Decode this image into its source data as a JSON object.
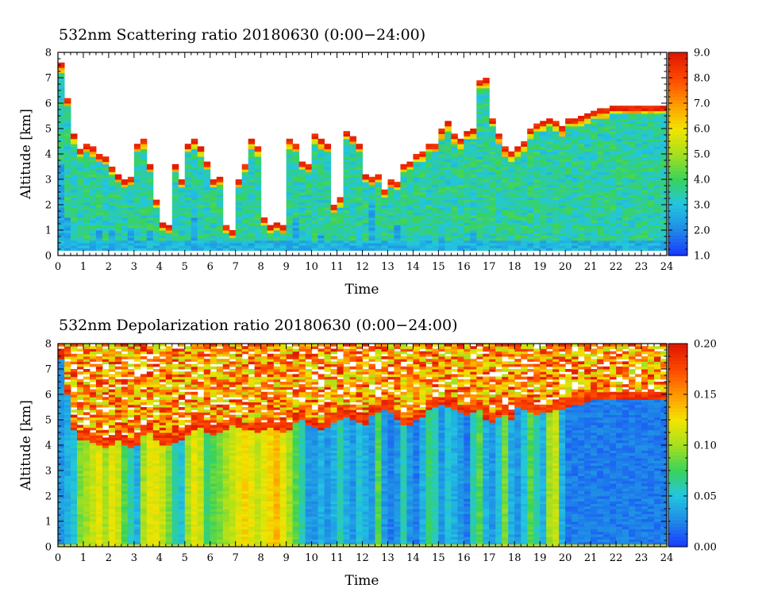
{
  "colors": {
    "colormap": [
      "#1a3cff",
      "#1f8ce6",
      "#22c6e0",
      "#3ad35a",
      "#a6e01e",
      "#f2e400",
      "#ff9a00",
      "#ff4a00",
      "#e01800"
    ],
    "cloud_edge": "#ff3a00",
    "clear_sky": "#ffffff"
  },
  "chart_data": [
    {
      "type": "heatmap",
      "title": "532nm Scattering ratio   20180630 (0:00−24:00)",
      "xlabel": "Time",
      "ylabel": "Altitude [km]",
      "xlim": [
        0,
        24
      ],
      "ylim": [
        0,
        8
      ],
      "x_ticks": [
        "0",
        "1",
        "2",
        "3",
        "4",
        "5",
        "6",
        "7",
        "8",
        "9",
        "10",
        "11",
        "12",
        "13",
        "14",
        "15",
        "16",
        "17",
        "18",
        "19",
        "20",
        "21",
        "22",
        "23",
        "24"
      ],
      "y_ticks": [
        "0",
        "1",
        "2",
        "3",
        "4",
        "5",
        "6",
        "7",
        "8"
      ],
      "colorbar": {
        "min": 1.0,
        "max": 9.0,
        "ticks": [
          "1.0",
          "2.0",
          "3.0",
          "4.0",
          "5.0",
          "6.0",
          "7.0",
          "8.0",
          "9.0"
        ]
      },
      "cloud_top_km": [
        7.6,
        6.2,
        4.8,
        4.2,
        4.4,
        4.3,
        4.0,
        3.9,
        3.5,
        3.2,
        3.0,
        3.1,
        4.4,
        4.6,
        3.6,
        2.2,
        1.3,
        1.2,
        3.6,
        3.0,
        4.4,
        4.6,
        4.3,
        3.7,
        3.0,
        3.1,
        1.2,
        1.0,
        3.0,
        3.6,
        4.6,
        4.3,
        1.5,
        1.2,
        1.3,
        1.2,
        4.6,
        4.4,
        3.7,
        3.6,
        4.8,
        4.6,
        4.4,
        2.0,
        2.3,
        4.9,
        4.7,
        4.4,
        3.2,
        3.1,
        3.2,
        2.6,
        3.0,
        2.9,
        3.6,
        3.7,
        4.0,
        4.1,
        4.4,
        4.4,
        5.0,
        5.3,
        4.8,
        4.6,
        4.9,
        5.0,
        6.9,
        7.0,
        5.4,
        4.8,
        4.3,
        4.1,
        4.3,
        4.5,
        5.0,
        5.2,
        5.3,
        5.4,
        5.3,
        5.1,
        5.4,
        5.4,
        5.5,
        5.6,
        5.7,
        5.8,
        5.8,
        5.9,
        5.9,
        5.9,
        5.9,
        5.9,
        5.9,
        5.9,
        5.9,
        5.9
      ],
      "cloud_base_km": [
        3.6,
        1.5,
        0.3,
        0.3,
        0.3,
        0.3,
        1.0,
        0.3,
        1.0,
        0.3,
        0.3,
        1.0,
        0.3,
        0.3,
        1.0,
        0.3,
        0.3,
        0.3,
        0.3,
        0.3,
        0.3,
        1.5,
        0.3,
        0.3,
        0.3,
        0.3,
        0.3,
        0.3,
        0.3,
        0.3,
        0.3,
        0.3,
        0.3,
        0.3,
        0.3,
        0.3,
        0.3,
        1.5,
        0.3,
        0.3,
        0.3,
        0.8,
        0.3,
        0.3,
        0.3,
        0.3,
        0.3,
        0.3,
        0.3,
        2.0,
        0.3,
        0.3,
        0.3,
        1.2,
        0.3,
        0.3,
        0.3,
        0.3,
        0.3,
        0.3,
        0.8,
        0.3,
        0.3,
        0.3,
        0.3,
        1.0,
        0.3,
        0.3,
        0.3,
        0.3,
        0.3,
        0.3,
        0.3,
        0.3,
        0.3,
        0.3,
        0.3,
        0.3,
        0.3,
        0.3,
        0.3,
        0.3,
        0.3,
        0.3,
        0.3,
        0.3,
        0.3,
        0.3,
        0.3,
        0.3,
        0.3,
        0.3,
        0.3,
        0.3,
        0.3,
        0.3
      ],
      "boundary_layer_top_km": 0.6
    },
    {
      "type": "heatmap",
      "title": "532nm Depolarization ratio   20180630 (0:00−24:00)",
      "xlabel": "Time",
      "ylabel": "Altitude [km]",
      "xlim": [
        0,
        24
      ],
      "ylim": [
        0,
        8
      ],
      "x_ticks": [
        "0",
        "1",
        "2",
        "3",
        "4",
        "5",
        "6",
        "7",
        "8",
        "9",
        "10",
        "11",
        "12",
        "13",
        "14",
        "15",
        "16",
        "17",
        "18",
        "19",
        "20",
        "21",
        "22",
        "23",
        "24"
      ],
      "y_ticks": [
        "0",
        "1",
        "2",
        "3",
        "4",
        "5",
        "6",
        "7",
        "8"
      ],
      "colorbar": {
        "min": 0.0,
        "max": 0.2,
        "ticks": [
          "0.00",
          "0.05",
          "0.10",
          "0.15",
          "0.20"
        ]
      },
      "noise_floor_km": [
        7.4,
        6.0,
        4.6,
        4.2,
        4.2,
        4.1,
        4.0,
        3.9,
        4.0,
        4.2,
        4.0,
        3.9,
        4.0,
        4.4,
        4.5,
        4.2,
        4.0,
        4.0,
        4.1,
        4.2,
        4.4,
        4.6,
        4.7,
        4.5,
        4.4,
        4.5,
        4.6,
        4.8,
        4.7,
        4.6,
        4.6,
        4.5,
        4.6,
        4.7,
        4.6,
        4.5,
        4.6,
        4.9,
        5.0,
        4.8,
        4.7,
        4.6,
        4.7,
        4.9,
        5.0,
        5.1,
        5.0,
        4.9,
        4.8,
        5.2,
        5.3,
        5.4,
        5.3,
        5.0,
        4.8,
        4.8,
        5.0,
        5.1,
        5.4,
        5.5,
        5.6,
        5.5,
        5.4,
        5.3,
        5.2,
        5.3,
        5.4,
        5.0,
        4.9,
        5.1,
        5.2,
        5.0,
        5.5,
        5.4,
        5.3,
        5.2,
        5.3,
        5.3,
        5.4,
        5.4,
        5.5,
        5.6,
        5.6,
        5.7,
        5.8,
        5.8,
        5.8,
        5.8,
        5.8,
        5.8,
        5.8,
        5.8,
        5.8,
        5.8,
        5.8,
        5.8
      ],
      "low_level_ratio": [
        0.03,
        0.04,
        0.05,
        0.09,
        0.1,
        0.11,
        0.12,
        0.1,
        0.12,
        0.11,
        0.08,
        0.06,
        0.04,
        0.1,
        0.12,
        0.12,
        0.11,
        0.09,
        0.06,
        0.05,
        0.1,
        0.12,
        0.11,
        0.07,
        0.08,
        0.09,
        0.1,
        0.11,
        0.12,
        0.13,
        0.12,
        0.11,
        0.12,
        0.13,
        0.14,
        0.12,
        0.1,
        0.08,
        0.06,
        0.03,
        0.03,
        0.04,
        0.03,
        0.04,
        0.06,
        0.04,
        0.03,
        0.05,
        0.04,
        0.03,
        0.08,
        0.03,
        0.02,
        0.03,
        0.06,
        0.03,
        0.02,
        0.04,
        0.07,
        0.06,
        0.03,
        0.05,
        0.04,
        0.03,
        0.02,
        0.06,
        0.08,
        0.04,
        0.03,
        0.05,
        0.09,
        0.04,
        0.03,
        0.05,
        0.08,
        0.06,
        0.04,
        0.1,
        0.11,
        0.04,
        0.02,
        0.02,
        0.02,
        0.02,
        0.02,
        0.02,
        0.02,
        0.02,
        0.02,
        0.02,
        0.02,
        0.02,
        0.02,
        0.02,
        0.02,
        0.02
      ]
    }
  ]
}
